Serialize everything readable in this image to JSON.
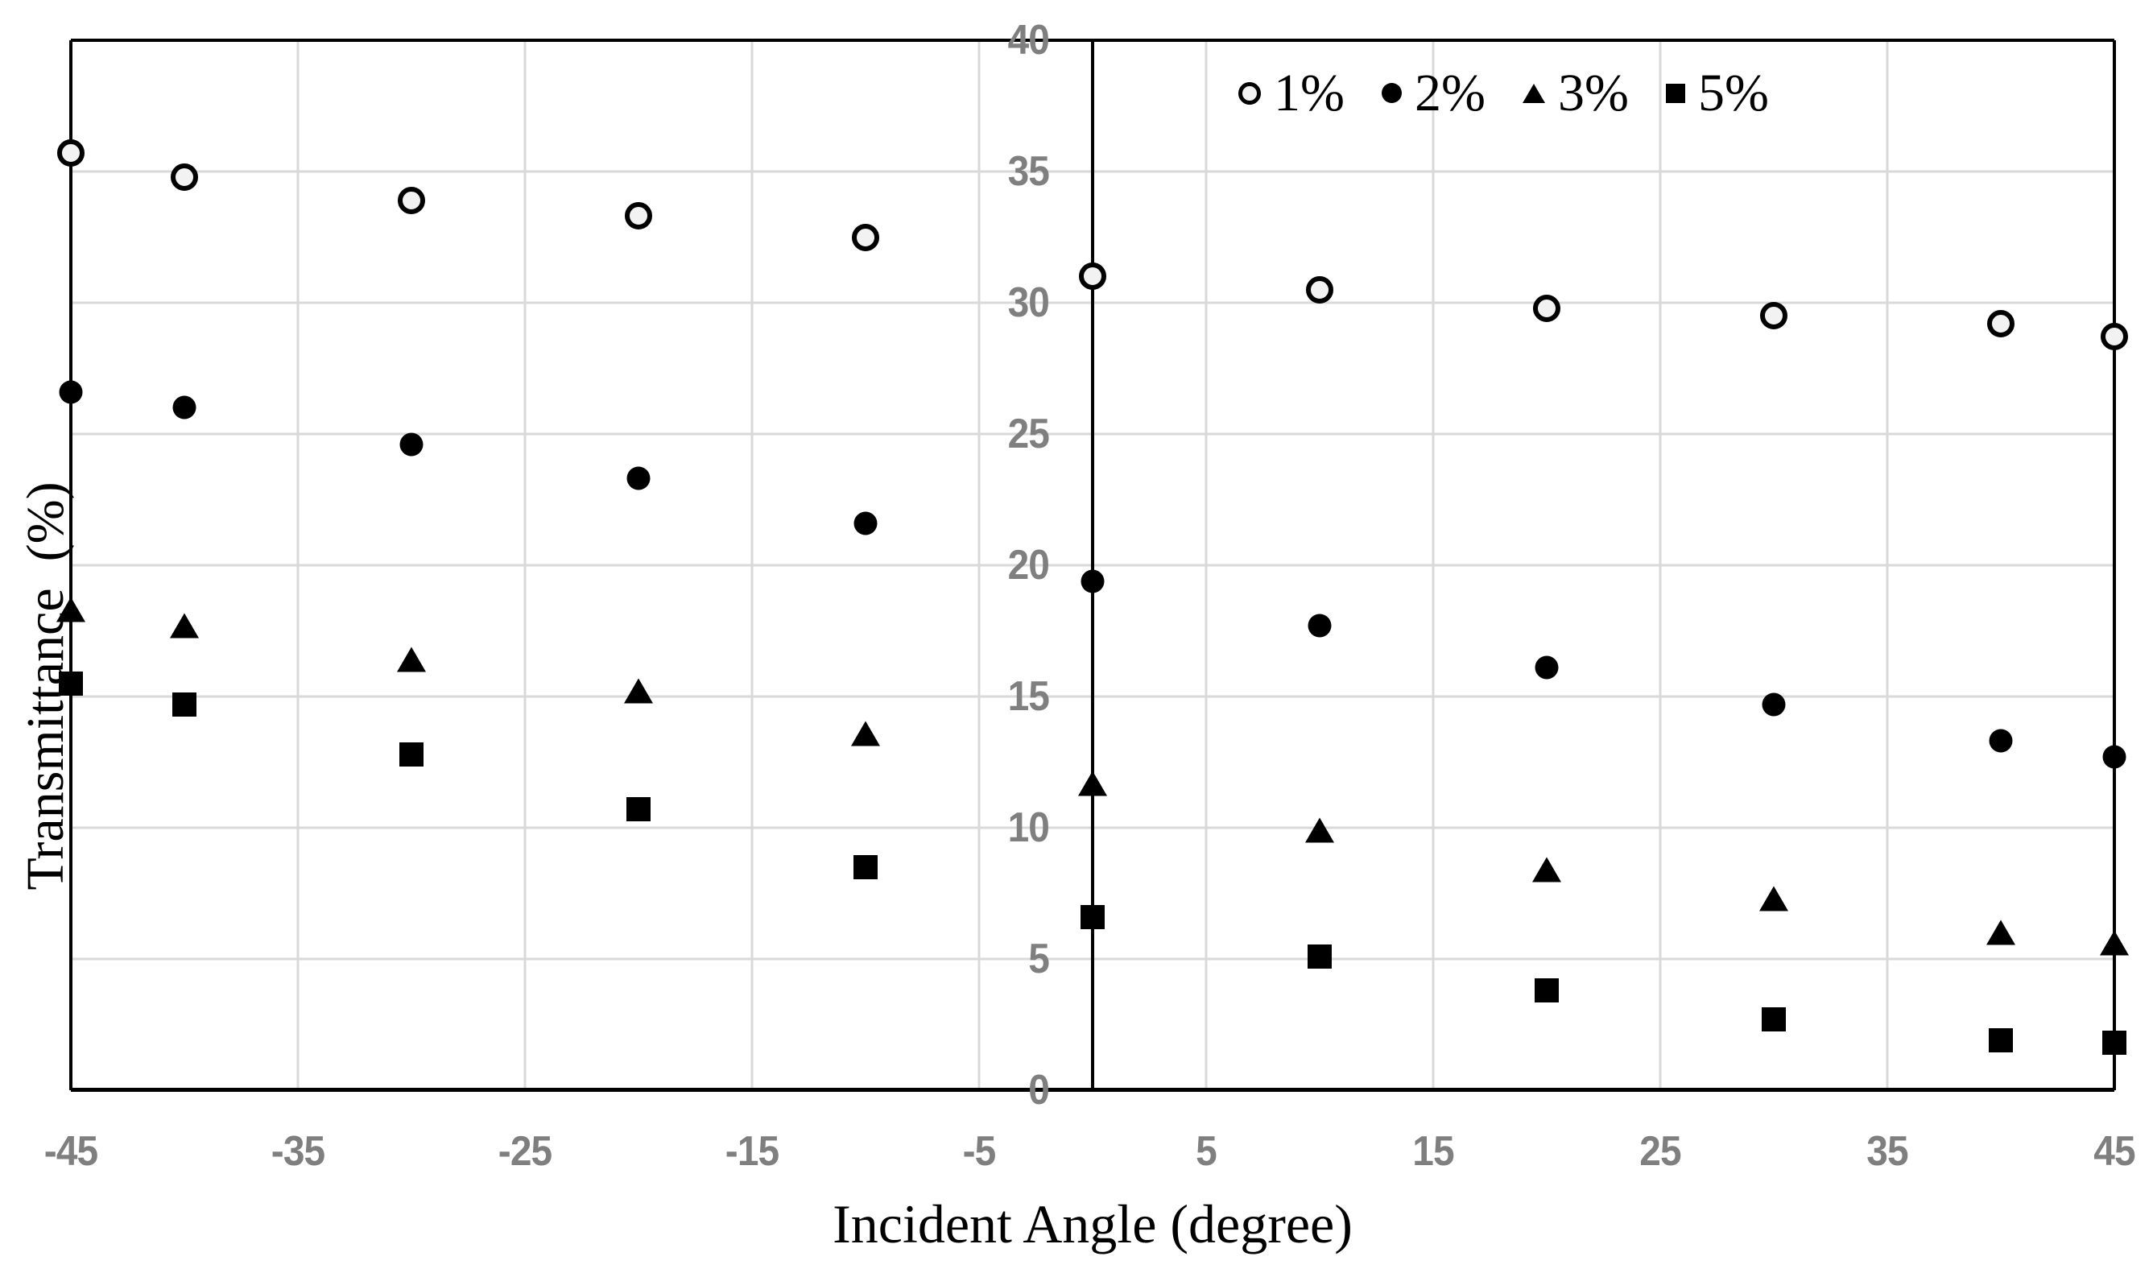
{
  "chart_data": {
    "type": "scatter",
    "title": "",
    "xlabel": "Incident Angle (degree)",
    "ylabel": "Transmittance  (%)",
    "xlim": [
      -45,
      45
    ],
    "ylim": [
      0,
      40
    ],
    "x_ticks": [
      -45,
      -35,
      -25,
      -15,
      -5,
      5,
      15,
      25,
      35,
      45
    ],
    "y_ticks": [
      0,
      5,
      10,
      15,
      20,
      25,
      30,
      35,
      40
    ],
    "grid": "on",
    "legend_position": "top-center-inside",
    "x": [
      -45,
      -40,
      -30,
      -20,
      -10,
      0,
      10,
      20,
      30,
      40,
      45
    ],
    "series": [
      {
        "name": "1%",
        "marker": "open-circle",
        "values": [
          35.7,
          34.8,
          33.9,
          33.3,
          32.5,
          31.0,
          30.5,
          29.8,
          29.5,
          29.2,
          28.7
        ]
      },
      {
        "name": "2%",
        "marker": "filled-circle",
        "values": [
          26.6,
          26.0,
          24.6,
          23.3,
          21.6,
          19.4,
          17.7,
          16.1,
          14.7,
          13.3,
          12.7
        ]
      },
      {
        "name": "3%",
        "marker": "filled-triangle",
        "values": [
          18.3,
          17.7,
          16.4,
          15.2,
          13.6,
          11.7,
          9.9,
          8.4,
          7.3,
          6.0,
          5.6
        ]
      },
      {
        "name": "5%",
        "marker": "filled-square",
        "values": [
          15.5,
          14.7,
          12.8,
          10.7,
          8.5,
          6.6,
          5.1,
          3.8,
          2.7,
          1.9,
          1.8
        ]
      }
    ]
  },
  "colors": {
    "marker": "#000000",
    "open_marker_fill": "#f2f2f2",
    "axis_line": "#000000",
    "gridline": "#d9d9d9",
    "tick_label": "#7f7f7f",
    "background": "#ffffff"
  }
}
